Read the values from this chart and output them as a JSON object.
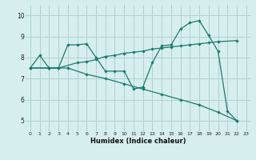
{
  "xlabel": "Humidex (Indice chaleur)",
  "xlim": [
    -0.5,
    23.5
  ],
  "ylim": [
    4.5,
    10.5
  ],
  "yticks": [
    5,
    6,
    7,
    8,
    9,
    10
  ],
  "xticks": [
    0,
    1,
    2,
    3,
    4,
    5,
    6,
    7,
    8,
    9,
    10,
    11,
    12,
    13,
    14,
    15,
    16,
    17,
    18,
    19,
    20,
    21,
    22,
    23
  ],
  "bg_color": "#d6eeee",
  "grid_color": "#b0d0d0",
  "line_color": "#1a7a6e",
  "line1": {
    "x": [
      0,
      1,
      2,
      3,
      4,
      5,
      6,
      7,
      8,
      9,
      10,
      11,
      12,
      13,
      14,
      15,
      16,
      17,
      18,
      19,
      20,
      21,
      22
    ],
    "y": [
      7.5,
      8.1,
      7.5,
      7.5,
      8.6,
      8.6,
      8.65,
      8.0,
      7.35,
      7.35,
      7.35,
      6.5,
      6.6,
      7.75,
      8.55,
      8.6,
      9.35,
      9.65,
      9.75,
      9.05,
      8.3,
      5.45,
      5.0
    ]
  },
  "line2": {
    "x": [
      0,
      2,
      3,
      5,
      6,
      7,
      8,
      9,
      10,
      11,
      12,
      13,
      14,
      15,
      16,
      17,
      18,
      19,
      20,
      22
    ],
    "y": [
      7.5,
      7.5,
      7.5,
      7.75,
      7.8,
      7.9,
      8.05,
      8.1,
      8.2,
      8.25,
      8.3,
      8.4,
      8.45,
      8.5,
      8.55,
      8.6,
      8.65,
      8.7,
      8.75,
      8.8
    ]
  },
  "line3": {
    "x": [
      0,
      2,
      4,
      6,
      8,
      10,
      12,
      14,
      16,
      18,
      20,
      22
    ],
    "y": [
      7.5,
      7.5,
      7.5,
      7.2,
      7.0,
      6.75,
      6.5,
      6.25,
      6.0,
      5.75,
      5.4,
      5.0
    ]
  }
}
